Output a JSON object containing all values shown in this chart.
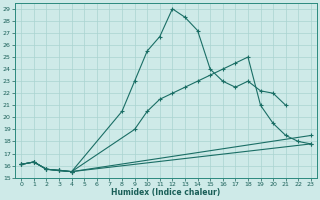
{
  "xlabel": "Humidex (Indice chaleur)",
  "xlim": [
    -0.5,
    23.5
  ],
  "ylim": [
    15,
    29.5
  ],
  "xticks": [
    0,
    1,
    2,
    3,
    4,
    5,
    6,
    7,
    8,
    9,
    10,
    11,
    12,
    13,
    14,
    15,
    16,
    17,
    18,
    19,
    20,
    21,
    22,
    23
  ],
  "yticks": [
    15,
    16,
    17,
    18,
    19,
    20,
    21,
    22,
    23,
    24,
    25,
    26,
    27,
    28,
    29
  ],
  "bg_color": "#ceeae8",
  "line_color": "#1a6e65",
  "grid_color": "#aad4d0",
  "lines": [
    {
      "x": [
        0,
        1,
        2,
        3,
        4,
        8,
        9,
        10,
        11,
        12,
        13,
        14,
        15,
        16,
        17,
        18,
        19,
        20,
        21
      ],
      "y": [
        16.1,
        16.3,
        15.7,
        15.6,
        15.5,
        20.5,
        23.0,
        25.5,
        26.7,
        29.0,
        28.3,
        27.2,
        24.0,
        23.0,
        22.5,
        23.0,
        22.2,
        22.0,
        21.0
      ]
    },
    {
      "x": [
        0,
        1,
        2,
        3,
        4,
        9,
        10,
        11,
        12,
        13,
        14,
        15,
        16,
        17,
        18,
        19,
        20,
        21,
        22,
        23
      ],
      "y": [
        16.1,
        16.3,
        15.7,
        15.6,
        15.5,
        19.0,
        20.5,
        21.5,
        22.0,
        22.5,
        23.0,
        23.5,
        24.0,
        24.5,
        25.0,
        21.0,
        19.5,
        18.5,
        18.0,
        17.8
      ]
    },
    {
      "x": [
        0,
        1,
        2,
        3,
        4,
        23
      ],
      "y": [
        16.1,
        16.3,
        15.7,
        15.6,
        15.5,
        18.5
      ]
    },
    {
      "x": [
        0,
        1,
        2,
        3,
        4,
        23
      ],
      "y": [
        16.1,
        16.3,
        15.7,
        15.6,
        15.5,
        17.8
      ]
    }
  ]
}
